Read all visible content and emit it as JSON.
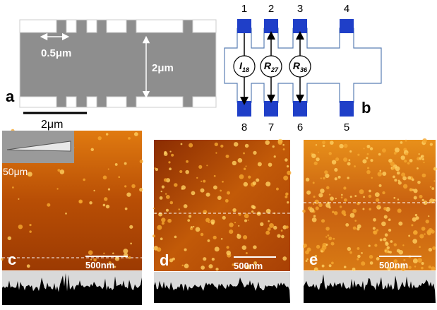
{
  "panels": {
    "a": {
      "label": "a",
      "gap_width": "0.5μm",
      "device_width": "2μm",
      "scale_bar": "2μm"
    },
    "b": {
      "label": "b",
      "top_pins": [
        "1",
        "2",
        "3",
        "4"
      ],
      "bottom_pins": [
        "8",
        "7",
        "6",
        "5"
      ],
      "elements": [
        {
          "symbol": "I",
          "subscript": "18"
        },
        {
          "symbol": "R",
          "subscript": "27"
        },
        {
          "symbol": "R",
          "subscript": "36"
        }
      ]
    },
    "c": {
      "label": "c",
      "inset_scale": "50μm",
      "scale_bar": "500nm"
    },
    "d": {
      "label": "d",
      "scale_bar": "500nm"
    },
    "e": {
      "label": "e",
      "scale_bar": "500nm"
    }
  }
}
